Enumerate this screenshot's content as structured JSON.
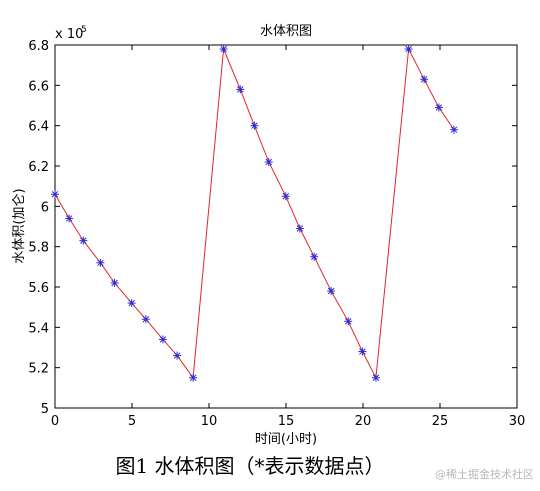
{
  "chart_data": {
    "type": "line",
    "title": "水体积图",
    "xlabel": "时间(小时)",
    "ylabel": "水体积(加仑)",
    "y_exponent_label": "x 10",
    "y_exponent_power": "5",
    "xlim": [
      0,
      30
    ],
    "ylim": [
      5.0,
      6.8
    ],
    "x_ticks": [
      0,
      5,
      10,
      15,
      20,
      25,
      30
    ],
    "y_ticks": [
      5,
      5.2,
      5.4,
      5.6,
      5.8,
      6,
      6.2,
      6.4,
      6.6,
      6.8
    ],
    "x_tick_labels": [
      "0",
      "5",
      "10",
      "15",
      "20",
      "25",
      "30"
    ],
    "y_tick_labels": [
      "5",
      "5.2",
      "5.4",
      "5.6",
      "5.8",
      "6",
      "6.2",
      "6.4",
      "6.6",
      "6.8"
    ],
    "grid": false,
    "line_color": "#e3262b",
    "marker_color": "#2b2bd6",
    "marker": "asterisk",
    "points": [
      {
        "x": 0.0,
        "y": 6.06
      },
      {
        "x": 0.92,
        "y": 5.94
      },
      {
        "x": 1.84,
        "y": 5.83
      },
      {
        "x": 2.95,
        "y": 5.72
      },
      {
        "x": 3.87,
        "y": 5.62
      },
      {
        "x": 4.98,
        "y": 5.52
      },
      {
        "x": 5.9,
        "y": 5.44
      },
      {
        "x": 7.01,
        "y": 5.34
      },
      {
        "x": 7.93,
        "y": 5.26
      },
      {
        "x": 8.97,
        "y": 5.15
      },
      {
        "x": 10.95,
        "y": 6.78
      },
      {
        "x": 12.03,
        "y": 6.58
      },
      {
        "x": 12.95,
        "y": 6.4
      },
      {
        "x": 13.88,
        "y": 6.22
      },
      {
        "x": 14.99,
        "y": 6.05
      },
      {
        "x": 15.9,
        "y": 5.89
      },
      {
        "x": 16.83,
        "y": 5.75
      },
      {
        "x": 17.93,
        "y": 5.58
      },
      {
        "x": 19.04,
        "y": 5.43
      },
      {
        "x": 19.96,
        "y": 5.28
      },
      {
        "x": 20.84,
        "y": 5.15
      },
      {
        "x": 22.96,
        "y": 6.78
      },
      {
        "x": 23.97,
        "y": 6.63
      },
      {
        "x": 24.93,
        "y": 6.49
      },
      {
        "x": 25.91,
        "y": 6.38
      }
    ]
  },
  "caption": "图1 水体积图（*表示数据点）",
  "watermark": "@稀土掘金技术社区"
}
